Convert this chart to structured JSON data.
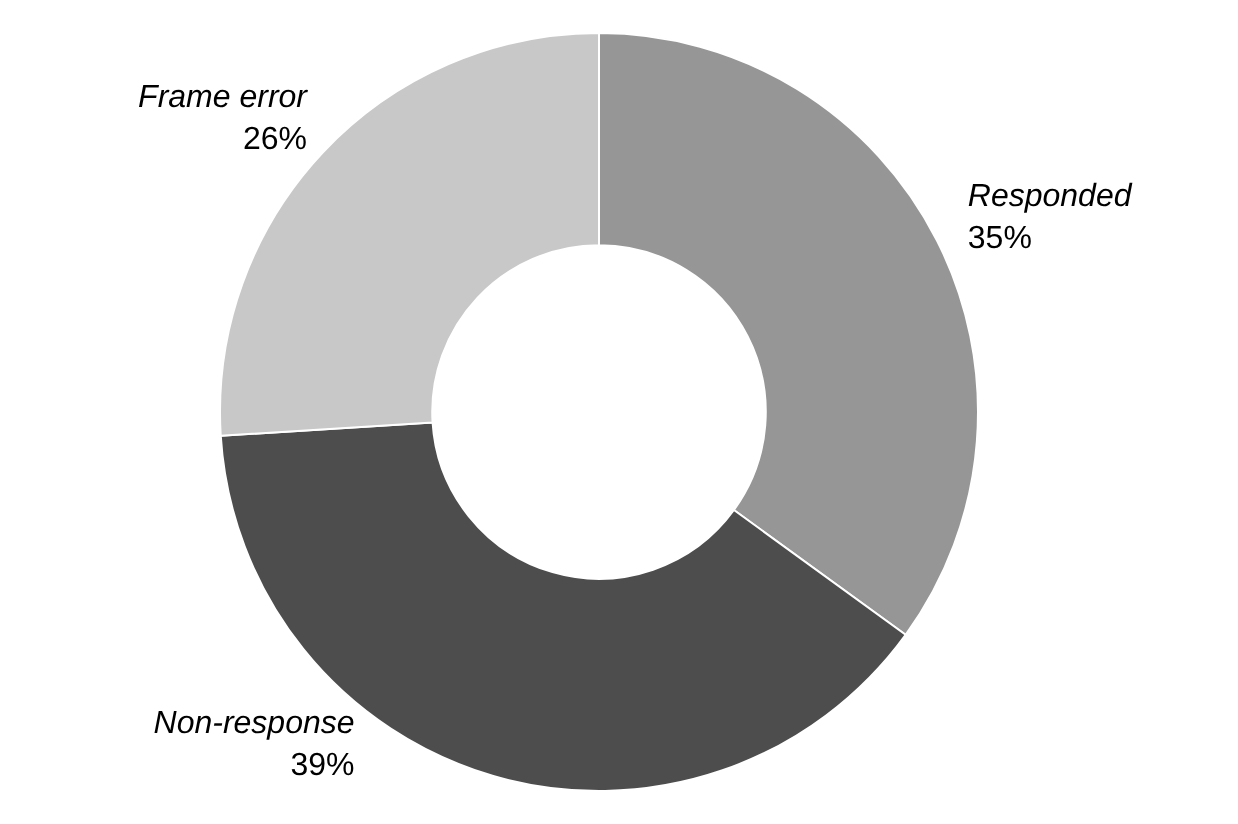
{
  "chart_data": {
    "type": "donut",
    "categories": [
      "Responded",
      "Non-response",
      "Frame error"
    ],
    "values": [
      35,
      39,
      26
    ],
    "colors": [
      "#969696",
      "#4d4d4d",
      "#c8c8c8"
    ],
    "value_labels": [
      "35%",
      "39%",
      "26%"
    ],
    "legend": false
  }
}
